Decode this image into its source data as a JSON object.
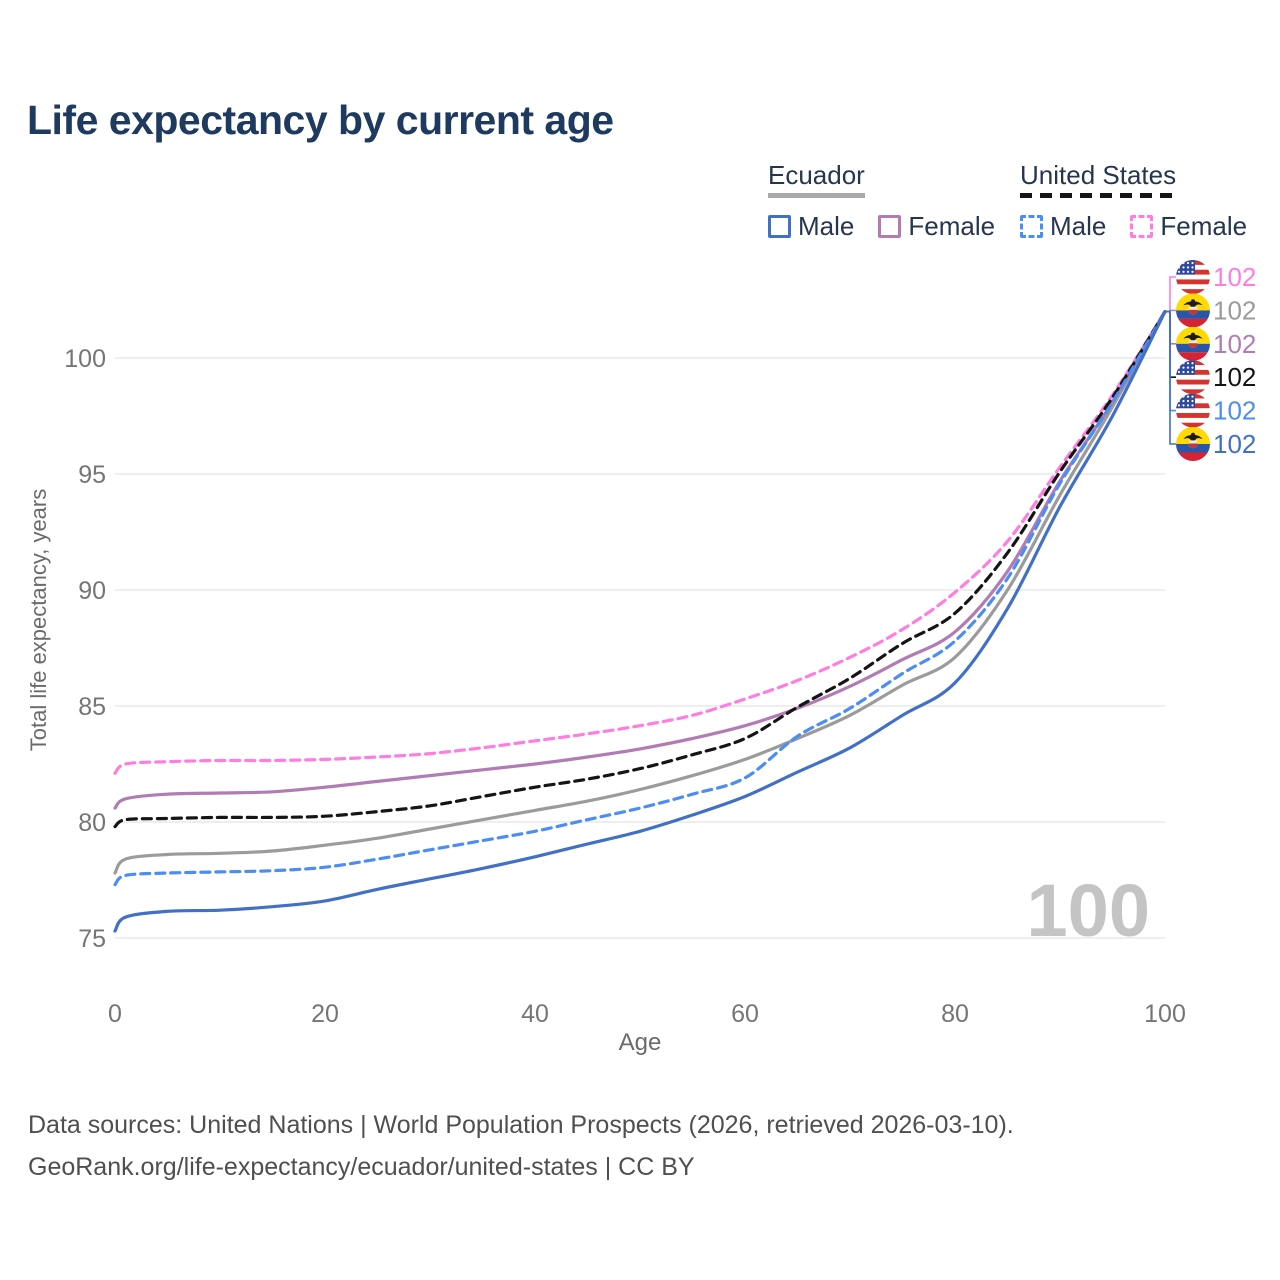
{
  "header": {
    "title": "Life expectancy by current age"
  },
  "legend": {
    "groups": [
      {
        "country": "Ecuador",
        "line_style": "solid",
        "underline_color": "#a8a8a8",
        "items": [
          {
            "label": "Male",
            "color": "#4170c4",
            "dashed": false
          },
          {
            "label": "Female",
            "color": "#b17cb3",
            "dashed": false
          }
        ]
      },
      {
        "country": "United States",
        "line_style": "dashed",
        "underline_color": "#151515",
        "items": [
          {
            "label": "Male",
            "color": "#4c8df5",
            "dashed": true
          },
          {
            "label": "Female",
            "color": "#ff7ce0",
            "dashed": true
          }
        ]
      }
    ]
  },
  "chart_data": {
    "type": "line",
    "title": "Life expectancy by current age",
    "xlabel": "Age",
    "ylabel": "Total life expectancy, years",
    "x_ticks": [
      0,
      20,
      40,
      60,
      80,
      100
    ],
    "y_ticks": [
      75,
      80,
      85,
      90,
      95,
      100
    ],
    "xlim": [
      0,
      100
    ],
    "ylim": [
      74.5,
      102.5
    ],
    "grid": "horizontal",
    "legend_position": "top-right",
    "age_counter_watermark": "100",
    "ages": [
      0,
      1,
      5,
      10,
      15,
      20,
      25,
      30,
      35,
      40,
      45,
      50,
      55,
      60,
      65,
      70,
      75,
      80,
      85,
      90,
      95,
      100
    ],
    "series": [
      {
        "id": "us-female",
        "country": "United States",
        "sex": "Female",
        "flag": "us",
        "color": "#ff7ce0",
        "dashed": true,
        "end_label": "102",
        "values": [
          82.1,
          82.5,
          82.6,
          82.65,
          82.65,
          82.7,
          82.8,
          82.95,
          83.2,
          83.5,
          83.8,
          84.15,
          84.6,
          85.3,
          86.1,
          87.1,
          88.3,
          89.9,
          92.1,
          95.3,
          98.4,
          102
        ]
      },
      {
        "id": "ecuador-both",
        "country": "Ecuador",
        "sex": "Both sexes",
        "flag": "ec",
        "color": "#9b9b9b",
        "dashed": false,
        "end_label": "102",
        "values": [
          77.8,
          78.4,
          78.6,
          78.65,
          78.75,
          79.0,
          79.3,
          79.7,
          80.1,
          80.5,
          80.9,
          81.4,
          82.0,
          82.7,
          83.6,
          84.6,
          85.9,
          87.1,
          90.0,
          94.1,
          97.9,
          102
        ]
      },
      {
        "id": "ecuador-female",
        "country": "Ecuador",
        "sex": "Female",
        "flag": "ec",
        "color": "#b17cb3",
        "dashed": false,
        "end_label": "102",
        "values": [
          80.6,
          81.0,
          81.2,
          81.25,
          81.3,
          81.5,
          81.75,
          82.0,
          82.25,
          82.5,
          82.8,
          83.15,
          83.6,
          84.15,
          84.9,
          85.85,
          87.0,
          88.2,
          90.8,
          94.7,
          98.1,
          102
        ]
      },
      {
        "id": "us-both",
        "country": "United States",
        "sex": "Both sexes",
        "flag": "us",
        "color": "#151515",
        "dashed": true,
        "end_label": "102",
        "values": [
          79.8,
          80.1,
          80.15,
          80.2,
          80.2,
          80.25,
          80.45,
          80.7,
          81.1,
          81.5,
          81.85,
          82.3,
          82.9,
          83.6,
          84.95,
          86.2,
          87.7,
          89.0,
          91.6,
          95.1,
          98.3,
          102
        ]
      },
      {
        "id": "us-male",
        "country": "United States",
        "sex": "Male",
        "flag": "us",
        "color": "#4c8df5",
        "dashed": true,
        "end_label": "102",
        "values": [
          77.3,
          77.7,
          77.8,
          77.85,
          77.9,
          78.05,
          78.4,
          78.8,
          79.2,
          79.6,
          80.1,
          80.6,
          81.2,
          81.9,
          83.7,
          84.9,
          86.4,
          87.8,
          90.5,
          94.6,
          98.1,
          102
        ]
      },
      {
        "id": "ecuador-male",
        "country": "Ecuador",
        "sex": "Male",
        "flag": "ec",
        "color": "#4170c4",
        "dashed": false,
        "end_label": "102",
        "values": [
          75.3,
          75.9,
          76.15,
          76.2,
          76.35,
          76.6,
          77.1,
          77.55,
          78.0,
          78.5,
          79.05,
          79.6,
          80.3,
          81.1,
          82.15,
          83.2,
          84.6,
          86.0,
          89.2,
          93.6,
          97.5,
          102
        ]
      }
    ]
  },
  "footer": {
    "line1": "Data sources: United Nations | World Population Prospects (2026, retrieved 2026-03-10).",
    "line2": "GeoRank.org/life-expectancy/ecuador/united-states | CC BY"
  }
}
